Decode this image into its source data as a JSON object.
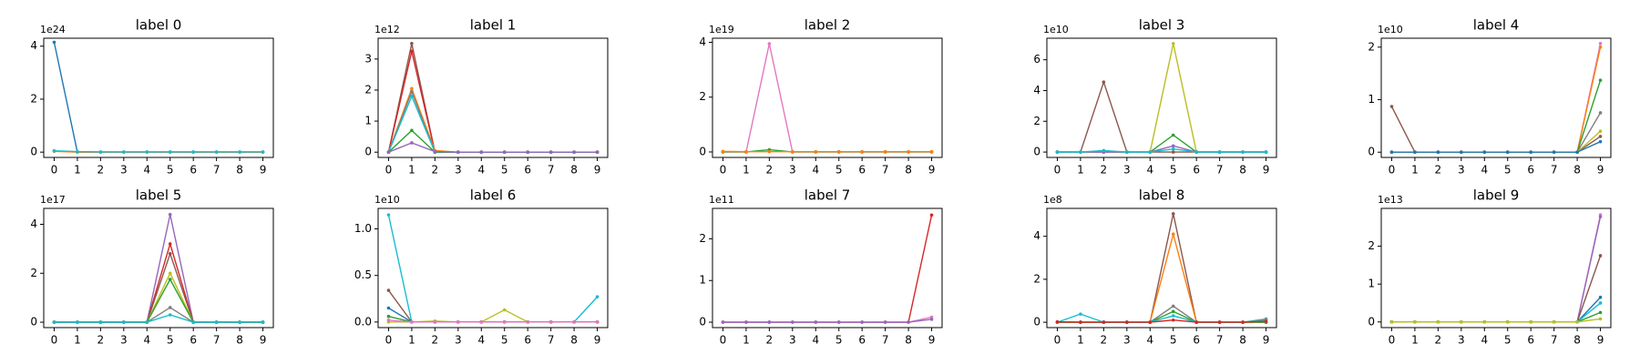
{
  "chart_data": [
    {
      "type": "line",
      "title": "label 0",
      "scale_label": "1e24",
      "x": [
        0,
        1,
        2,
        3,
        4,
        5,
        6,
        7,
        8,
        9
      ],
      "xlim": [
        -0.45,
        9.45
      ],
      "xticks": [
        0,
        1,
        2,
        3,
        4,
        5,
        6,
        7,
        8,
        9
      ],
      "ylim": [
        -0.2,
        4.3
      ],
      "yticks": [
        0,
        2,
        4
      ],
      "series": [
        {
          "color": "#1f77b4",
          "values": [
            4.15,
            0,
            0,
            0,
            0,
            0,
            0,
            0,
            0,
            0
          ]
        },
        {
          "color": "#ff7f0e",
          "values": [
            0.03,
            0,
            0,
            0,
            0,
            0,
            0,
            0,
            0,
            0
          ]
        },
        {
          "color": "#17becf",
          "values": [
            0.05,
            0.02,
            0.01,
            0.01,
            0.01,
            0.01,
            0.01,
            0.01,
            0.01,
            0.01
          ]
        }
      ]
    },
    {
      "type": "line",
      "title": "label 1",
      "scale_label": "1e12",
      "x": [
        0,
        1,
        2,
        3,
        4,
        5,
        6,
        7,
        8,
        9
      ],
      "xlim": [
        -0.45,
        9.45
      ],
      "xticks": [
        0,
        1,
        2,
        3,
        4,
        5,
        6,
        7,
        8,
        9
      ],
      "ylim": [
        -0.17,
        3.67
      ],
      "yticks": [
        0,
        1,
        2,
        3
      ],
      "series": [
        {
          "color": "#8c564b",
          "values": [
            0,
            3.5,
            0,
            0,
            0,
            0,
            0,
            0,
            0,
            0
          ]
        },
        {
          "color": "#d62728",
          "values": [
            0,
            3.25,
            0,
            0,
            0,
            0,
            0,
            0,
            0,
            0
          ]
        },
        {
          "color": "#ff7f0e",
          "values": [
            0,
            2.05,
            0.05,
            0,
            0,
            0,
            0,
            0,
            0,
            0
          ]
        },
        {
          "color": "#7f7f7f",
          "values": [
            0,
            1.95,
            0,
            0,
            0,
            0,
            0,
            0,
            0,
            0
          ]
        },
        {
          "color": "#17becf",
          "values": [
            0,
            1.8,
            0,
            0,
            0,
            0,
            0,
            0,
            0,
            0
          ]
        },
        {
          "color": "#2ca02c",
          "values": [
            0,
            0.7,
            0,
            0,
            0,
            0,
            0,
            0,
            0,
            0
          ]
        },
        {
          "color": "#9467bd",
          "values": [
            0,
            0.3,
            0.02,
            0,
            0,
            0,
            0,
            0,
            0,
            0
          ]
        }
      ]
    },
    {
      "type": "line",
      "title": "label 2",
      "scale_label": "1e19",
      "x": [
        0,
        1,
        2,
        3,
        4,
        5,
        6,
        7,
        8,
        9
      ],
      "xlim": [
        -0.45,
        9.45
      ],
      "xticks": [
        0,
        1,
        2,
        3,
        4,
        5,
        6,
        7,
        8,
        9
      ],
      "ylim": [
        -0.2,
        4.15
      ],
      "yticks": [
        0,
        2,
        4
      ],
      "series": [
        {
          "color": "#e377c2",
          "values": [
            0,
            0,
            3.95,
            0,
            0,
            0,
            0,
            0,
            0,
            0
          ]
        },
        {
          "color": "#2ca02c",
          "values": [
            0,
            0,
            0.08,
            0,
            0,
            0,
            0,
            0,
            0,
            0
          ]
        },
        {
          "color": "#ff7f0e",
          "values": [
            0.02,
            0.01,
            0.01,
            0.01,
            0.01,
            0.01,
            0.01,
            0.01,
            0.01,
            0.01
          ]
        }
      ]
    },
    {
      "type": "line",
      "title": "label 3",
      "scale_label": "1e10",
      "x": [
        0,
        1,
        2,
        3,
        4,
        5,
        6,
        7,
        8,
        9
      ],
      "xlim": [
        -0.45,
        9.45
      ],
      "xticks": [
        0,
        1,
        2,
        3,
        4,
        5,
        6,
        7,
        8,
        9
      ],
      "ylim": [
        -0.35,
        7.4
      ],
      "yticks": [
        0,
        2,
        4,
        6
      ],
      "series": [
        {
          "color": "#8c564b",
          "values": [
            0,
            0,
            4.55,
            0,
            0,
            0,
            0,
            0,
            0,
            0
          ]
        },
        {
          "color": "#bcbd22",
          "values": [
            0,
            0,
            0,
            0,
            0,
            7.05,
            0,
            0,
            0,
            0
          ]
        },
        {
          "color": "#2ca02c",
          "values": [
            0,
            0,
            0,
            0,
            0,
            1.1,
            0,
            0,
            0,
            0
          ]
        },
        {
          "color": "#9467bd",
          "values": [
            0,
            0,
            0,
            0,
            0,
            0.4,
            0,
            0,
            0,
            0
          ]
        },
        {
          "color": "#17becf",
          "values": [
            0,
            0,
            0.1,
            0,
            0,
            0.2,
            0,
            0,
            0,
            0
          ]
        }
      ]
    },
    {
      "type": "line",
      "title": "label 4",
      "scale_label": "1e10",
      "x": [
        0,
        1,
        2,
        3,
        4,
        5,
        6,
        7,
        8,
        9
      ],
      "xlim": [
        -0.45,
        9.45
      ],
      "xticks": [
        0,
        1,
        2,
        3,
        4,
        5,
        6,
        7,
        8,
        9
      ],
      "ylim": [
        -0.1,
        2.17
      ],
      "yticks": [
        0,
        1,
        2
      ],
      "series": [
        {
          "color": "#8c564b",
          "values": [
            0.87,
            0,
            0,
            0,
            0,
            0,
            0,
            0,
            0,
            0.3
          ]
        },
        {
          "color": "#e377c2",
          "values": [
            0,
            0,
            0,
            0,
            0,
            0,
            0,
            0,
            0,
            2.07
          ]
        },
        {
          "color": "#ff7f0e",
          "values": [
            0,
            0,
            0,
            0,
            0,
            0,
            0,
            0,
            0,
            2.0
          ]
        },
        {
          "color": "#2ca02c",
          "values": [
            0,
            0,
            0,
            0,
            0,
            0,
            0,
            0,
            0,
            1.37
          ]
        },
        {
          "color": "#7f7f7f",
          "values": [
            0,
            0,
            0,
            0,
            0,
            0,
            0,
            0,
            0,
            0.75
          ]
        },
        {
          "color": "#bcbd22",
          "values": [
            0,
            0,
            0,
            0,
            0,
            0,
            0,
            0,
            0,
            0.4
          ]
        },
        {
          "color": "#1f77b4",
          "values": [
            0,
            0,
            0,
            0,
            0,
            0,
            0,
            0,
            0,
            0.2
          ]
        }
      ]
    },
    {
      "type": "line",
      "title": "label 5",
      "scale_label": "1e17",
      "x": [
        0,
        1,
        2,
        3,
        4,
        5,
        6,
        7,
        8,
        9
      ],
      "xlim": [
        -0.45,
        9.45
      ],
      "xticks": [
        0,
        1,
        2,
        3,
        4,
        5,
        6,
        7,
        8,
        9
      ],
      "ylim": [
        -0.22,
        4.65
      ],
      "yticks": [
        0,
        2,
        4
      ],
      "series": [
        {
          "color": "#9467bd",
          "values": [
            0,
            0,
            0,
            0,
            0,
            4.4,
            0,
            0,
            0,
            0
          ]
        },
        {
          "color": "#d62728",
          "values": [
            0,
            0,
            0,
            0,
            0,
            3.2,
            0,
            0,
            0,
            0
          ]
        },
        {
          "color": "#8c564b",
          "values": [
            0,
            0,
            0,
            0,
            0,
            2.8,
            0,
            0,
            0,
            0
          ]
        },
        {
          "color": "#bcbd22",
          "values": [
            0,
            0,
            0,
            0,
            0,
            2.0,
            0,
            0,
            0,
            0
          ]
        },
        {
          "color": "#2ca02c",
          "values": [
            0,
            0,
            0,
            0,
            0,
            1.75,
            0,
            0,
            0,
            0
          ]
        },
        {
          "color": "#7f7f7f",
          "values": [
            0,
            0,
            0,
            0,
            0,
            0.6,
            0,
            0,
            0,
            0
          ]
        },
        {
          "color": "#17becf",
          "values": [
            0,
            0,
            0,
            0,
            0,
            0.3,
            0,
            0,
            0,
            0
          ]
        }
      ]
    },
    {
      "type": "line",
      "title": "label 6",
      "scale_label": "1e10",
      "x": [
        0,
        1,
        2,
        3,
        4,
        5,
        6,
        7,
        8,
        9
      ],
      "xlim": [
        -0.45,
        9.45
      ],
      "xticks": [
        0,
        1,
        2,
        3,
        4,
        5,
        6,
        7,
        8,
        9
      ],
      "ylim": [
        -0.06,
        1.22
      ],
      "yticks": [
        {
          "value": 0,
          "label": "0.0"
        },
        {
          "value": 0.5,
          "label": "0.5"
        },
        {
          "value": 1,
          "label": "1.0"
        }
      ],
      "series": [
        {
          "color": "#17becf",
          "values": [
            1.15,
            0,
            0,
            0,
            0,
            0,
            0,
            0,
            0,
            0.27
          ]
        },
        {
          "color": "#8c564b",
          "values": [
            0.34,
            0,
            0,
            0,
            0,
            0,
            0,
            0,
            0,
            0
          ]
        },
        {
          "color": "#bcbd22",
          "values": [
            0,
            0,
            0.01,
            0,
            0,
            0.13,
            0,
            0,
            0,
            0
          ]
        },
        {
          "color": "#1f77b4",
          "values": [
            0.15,
            0,
            0,
            0,
            0,
            0,
            0,
            0,
            0,
            0
          ]
        },
        {
          "color": "#2ca02c",
          "values": [
            0.06,
            0,
            0,
            0,
            0,
            0,
            0,
            0,
            0,
            0
          ]
        },
        {
          "color": "#e377c2",
          "values": [
            0.02,
            0,
            0,
            0,
            0,
            0,
            0,
            0,
            0,
            0
          ]
        }
      ]
    },
    {
      "type": "line",
      "title": "label 7",
      "scale_label": "1e11",
      "x": [
        0,
        1,
        2,
        3,
        4,
        5,
        6,
        7,
        8,
        9
      ],
      "xlim": [
        -0.45,
        9.45
      ],
      "xticks": [
        0,
        1,
        2,
        3,
        4,
        5,
        6,
        7,
        8,
        9
      ],
      "ylim": [
        -0.13,
        2.73
      ],
      "yticks": [
        0,
        1,
        2
      ],
      "series": [
        {
          "color": "#d62728",
          "values": [
            0,
            0,
            0,
            0,
            0,
            0,
            0,
            0,
            0,
            2.57
          ]
        },
        {
          "color": "#e377c2",
          "values": [
            0,
            0,
            0,
            0,
            0,
            0,
            0,
            0,
            0,
            0.12
          ]
        },
        {
          "color": "#9467bd",
          "values": [
            0,
            0,
            0,
            0,
            0,
            0,
            0,
            0,
            0,
            0.07
          ]
        }
      ]
    },
    {
      "type": "line",
      "title": "label 8",
      "scale_label": "1e8",
      "x": [
        0,
        1,
        2,
        3,
        4,
        5,
        6,
        7,
        8,
        9
      ],
      "xlim": [
        -0.45,
        9.45
      ],
      "xticks": [
        0,
        1,
        2,
        3,
        4,
        5,
        6,
        7,
        8,
        9
      ],
      "ylim": [
        -0.25,
        5.3
      ],
      "yticks": [
        0,
        2,
        4
      ],
      "series": [
        {
          "color": "#8c564b",
          "values": [
            0,
            0,
            0,
            0,
            0,
            5.05,
            0,
            0,
            0,
            0
          ]
        },
        {
          "color": "#ff7f0e",
          "values": [
            0,
            0,
            0,
            0,
            0,
            4.1,
            0,
            0,
            0,
            0
          ]
        },
        {
          "color": "#7f7f7f",
          "values": [
            0,
            0,
            0,
            0,
            0,
            0.75,
            0,
            0,
            0,
            0.15
          ]
        },
        {
          "color": "#2ca02c",
          "values": [
            0,
            0,
            0,
            0,
            0,
            0.5,
            0,
            0,
            0,
            0
          ]
        },
        {
          "color": "#17becf",
          "values": [
            0,
            0.38,
            0,
            0,
            0,
            0.3,
            0,
            0,
            0,
            0.1
          ]
        },
        {
          "color": "#d62728",
          "values": [
            0.02,
            0,
            0,
            0,
            0,
            0.1,
            0,
            0,
            0,
            0.05
          ]
        }
      ]
    },
    {
      "type": "line",
      "title": "label 9",
      "scale_label": "1e13",
      "x": [
        0,
        1,
        2,
        3,
        4,
        5,
        6,
        7,
        8,
        9
      ],
      "xlim": [
        -0.45,
        9.45
      ],
      "xticks": [
        0,
        1,
        2,
        3,
        4,
        5,
        6,
        7,
        8,
        9
      ],
      "ylim": [
        -0.15,
        3.0
      ],
      "yticks": [
        0,
        1,
        2
      ],
      "series": [
        {
          "color": "#e377c2",
          "values": [
            0,
            0,
            0,
            0,
            0,
            0,
            0,
            0,
            0,
            2.83
          ]
        },
        {
          "color": "#9467bd",
          "values": [
            0,
            0,
            0,
            0,
            0,
            0,
            0,
            0,
            0,
            2.78
          ]
        },
        {
          "color": "#8c564b",
          "values": [
            0,
            0,
            0,
            0,
            0,
            0,
            0,
            0,
            0,
            1.75
          ]
        },
        {
          "color": "#1f77b4",
          "values": [
            0,
            0,
            0,
            0,
            0,
            0,
            0,
            0,
            0,
            0.65
          ]
        },
        {
          "color": "#17becf",
          "values": [
            0,
            0,
            0,
            0,
            0,
            0,
            0,
            0,
            0,
            0.5
          ]
        },
        {
          "color": "#2ca02c",
          "values": [
            0,
            0,
            0,
            0,
            0,
            0,
            0,
            0,
            0,
            0.25
          ]
        },
        {
          "color": "#bcbd22",
          "values": [
            0,
            0,
            0,
            0,
            0,
            0,
            0,
            0,
            0,
            0.08
          ]
        }
      ]
    }
  ]
}
